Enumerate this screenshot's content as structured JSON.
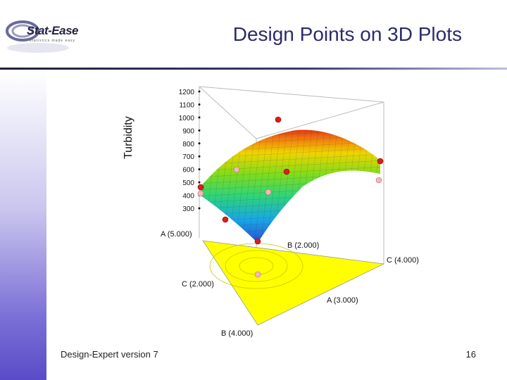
{
  "slide": {
    "title": "Design Points on 3D Plots",
    "footer_left": "Design-Expert version 7",
    "page_number": "16",
    "logo_text": "Stat-Ease",
    "logo_tagline": "statistics made easy"
  },
  "chart_data": {
    "type": "surface-3d",
    "zlabel": "Turbidity",
    "z_ticks": [
      300,
      400,
      500,
      600,
      700,
      800,
      900,
      1000,
      1100,
      1200
    ],
    "axis_labels": {
      "a_top": "A (5.000)",
      "b_top": "B (2.000)",
      "c_right": "C (4.000)",
      "c_left": "C (2.000)",
      "a_right": "A (3.000)",
      "b_bottom": "B (4.000)"
    },
    "colors": {
      "base": "#ffff00",
      "point_above": "#d81e1e",
      "point_below": "#f3b8b8"
    }
  }
}
